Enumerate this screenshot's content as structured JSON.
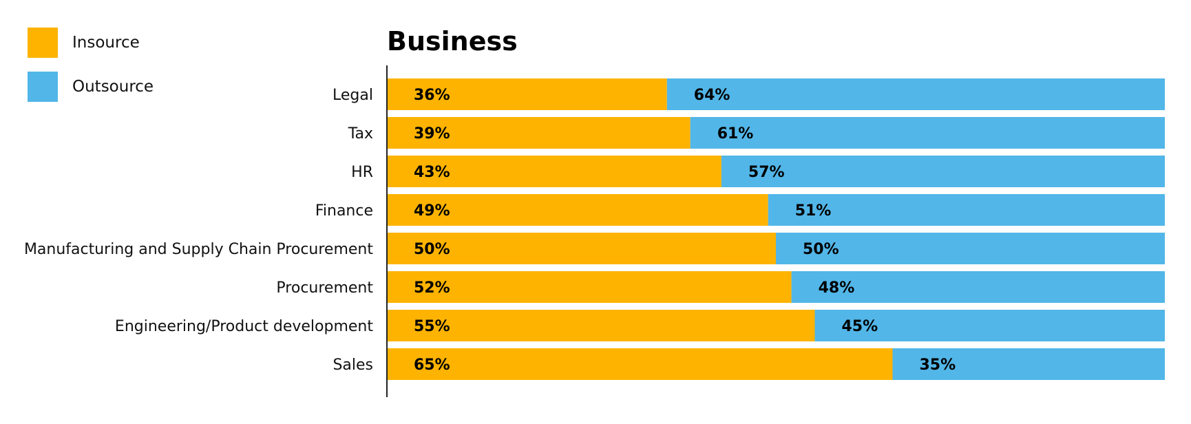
{
  "chart_data": {
    "type": "bar",
    "orientation": "horizontal",
    "stacked": true,
    "title": "Business",
    "categories": [
      "Legal",
      "Tax",
      "HR",
      "Finance",
      "Manufacturing and Supply Chain Procurement",
      "Procurement",
      "Engineering/Product development",
      "Sales"
    ],
    "series": [
      {
        "name": "Insource",
        "color": "#FDB300",
        "values": [
          36,
          39,
          43,
          49,
          50,
          52,
          55,
          65
        ],
        "labels": [
          "36%",
          "39%",
          "43%",
          "49%",
          "50%",
          "52%",
          "55%",
          "65%"
        ]
      },
      {
        "name": "Outsource",
        "color": "#52B6E8",
        "values": [
          64,
          61,
          57,
          51,
          50,
          48,
          45,
          35
        ],
        "labels": [
          "64%",
          "61%",
          "57%",
          "51%",
          "50%",
          "48%",
          "45%",
          "35%"
        ]
      }
    ],
    "xlim": [
      0,
      100
    ],
    "legend_position": "top-left",
    "grid": false
  }
}
